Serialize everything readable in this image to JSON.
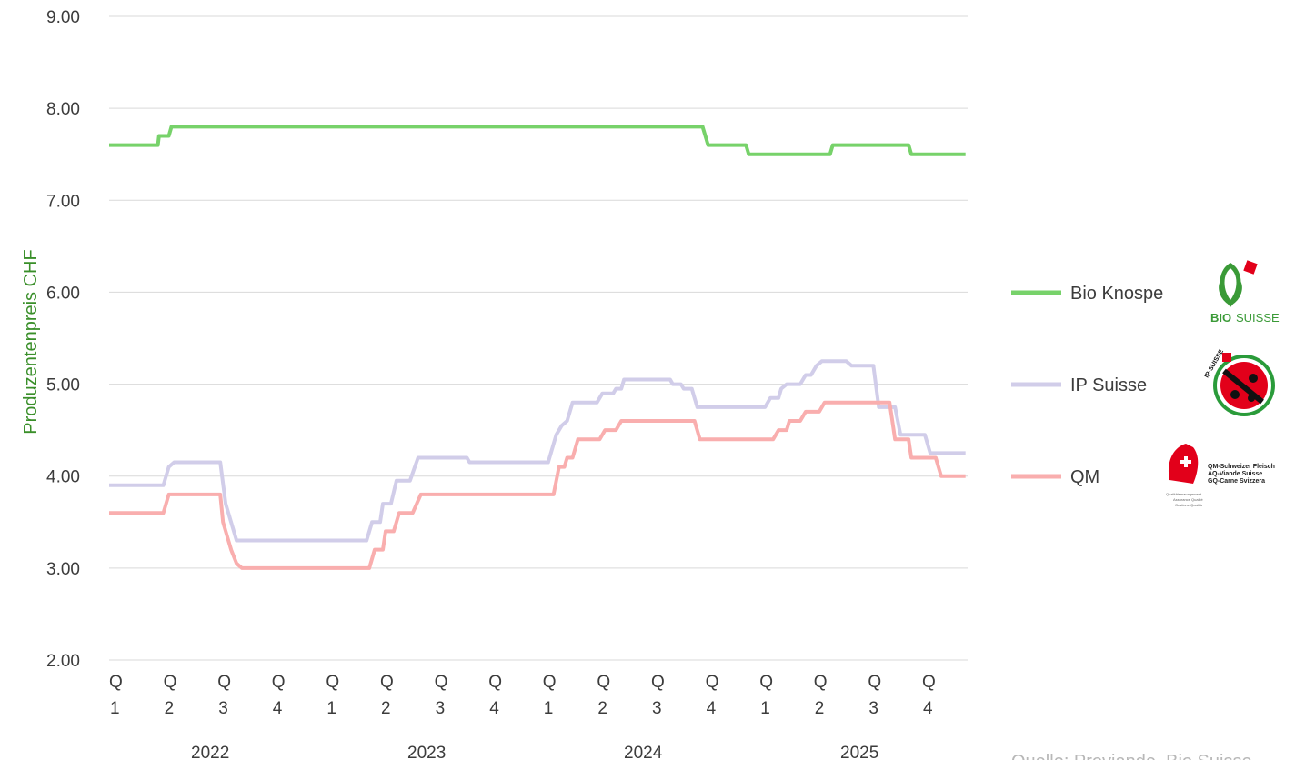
{
  "chart_data": {
    "type": "line",
    "title": "",
    "ylabel": "Produzentenpreis CHF",
    "ylim": [
      2.0,
      9.0
    ],
    "y_ticks": [
      "9.00",
      "8.00",
      "7.00",
      "6.00",
      "5.00",
      "4.00",
      "3.00",
      "2.00"
    ],
    "y_tick_values": [
      9,
      8,
      7,
      6,
      5,
      4,
      3,
      2
    ],
    "grid": true,
    "legend_position": "right",
    "x_quarter_labels": [
      {
        "q": "Q",
        "n": "1"
      },
      {
        "q": "Q",
        "n": "2"
      },
      {
        "q": "Q",
        "n": "3"
      },
      {
        "q": "Q",
        "n": "4"
      },
      {
        "q": "Q",
        "n": "1"
      },
      {
        "q": "Q",
        "n": "2"
      },
      {
        "q": "Q",
        "n": "3"
      },
      {
        "q": "Q",
        "n": "4"
      },
      {
        "q": "Q",
        "n": "1"
      },
      {
        "q": "Q",
        "n": "2"
      },
      {
        "q": "Q",
        "n": "3"
      },
      {
        "q": "Q",
        "n": "4"
      },
      {
        "q": "Q",
        "n": "1"
      },
      {
        "q": "Q",
        "n": "2"
      },
      {
        "q": "Q",
        "n": "3"
      },
      {
        "q": "Q",
        "n": "4"
      }
    ],
    "x_years": [
      "2022",
      "2023",
      "2024",
      "2025"
    ],
    "series": [
      {
        "name": "Bio Knospe",
        "color": "#77d26a",
        "points": [
          [
            0,
            7.6
          ],
          [
            0.9,
            7.6
          ],
          [
            0.92,
            7.7
          ],
          [
            1.1,
            7.7
          ],
          [
            1.15,
            7.8
          ],
          [
            10.95,
            7.8
          ],
          [
            11.05,
            7.6
          ],
          [
            11.75,
            7.6
          ],
          [
            11.8,
            7.5
          ],
          [
            13.3,
            7.5
          ],
          [
            13.35,
            7.6
          ],
          [
            14.75,
            7.6
          ],
          [
            14.8,
            7.5
          ],
          [
            15.8,
            7.5
          ]
        ]
      },
      {
        "name": "IP Suisse",
        "color": "#d1cde9",
        "points": [
          [
            0,
            3.9
          ],
          [
            1.0,
            3.9
          ],
          [
            1.1,
            4.1
          ],
          [
            1.2,
            4.15
          ],
          [
            2.05,
            4.15
          ],
          [
            2.15,
            3.7
          ],
          [
            2.3,
            3.4
          ],
          [
            2.35,
            3.3
          ],
          [
            4.75,
            3.3
          ],
          [
            4.85,
            3.5
          ],
          [
            5.0,
            3.5
          ],
          [
            5.05,
            3.7
          ],
          [
            5.2,
            3.7
          ],
          [
            5.3,
            3.95
          ],
          [
            5.55,
            3.95
          ],
          [
            5.7,
            4.2
          ],
          [
            6.6,
            4.2
          ],
          [
            6.65,
            4.15
          ],
          [
            8.1,
            4.15
          ],
          [
            8.25,
            4.45
          ],
          [
            8.35,
            4.55
          ],
          [
            8.45,
            4.6
          ],
          [
            8.55,
            4.8
          ],
          [
            9.0,
            4.8
          ],
          [
            9.1,
            4.9
          ],
          [
            9.3,
            4.9
          ],
          [
            9.35,
            4.95
          ],
          [
            9.45,
            4.95
          ],
          [
            9.5,
            5.05
          ],
          [
            10.35,
            5.05
          ],
          [
            10.4,
            5.0
          ],
          [
            10.55,
            5.0
          ],
          [
            10.6,
            4.95
          ],
          [
            10.75,
            4.95
          ],
          [
            10.85,
            4.75
          ],
          [
            12.1,
            4.75
          ],
          [
            12.2,
            4.85
          ],
          [
            12.35,
            4.85
          ],
          [
            12.4,
            4.95
          ],
          [
            12.5,
            5.0
          ],
          [
            12.75,
            5.0
          ],
          [
            12.85,
            5.1
          ],
          [
            12.95,
            5.1
          ],
          [
            13.05,
            5.2
          ],
          [
            13.15,
            5.25
          ],
          [
            13.6,
            5.25
          ],
          [
            13.7,
            5.2
          ],
          [
            14.1,
            5.2
          ],
          [
            14.2,
            4.75
          ],
          [
            14.5,
            4.75
          ],
          [
            14.6,
            4.45
          ],
          [
            15.05,
            4.45
          ],
          [
            15.15,
            4.25
          ],
          [
            15.8,
            4.25
          ]
        ]
      },
      {
        "name": "QM",
        "color": "#f9aeae",
        "points": [
          [
            0,
            3.6
          ],
          [
            1.0,
            3.6
          ],
          [
            1.1,
            3.8
          ],
          [
            2.05,
            3.8
          ],
          [
            2.1,
            3.5
          ],
          [
            2.25,
            3.2
          ],
          [
            2.35,
            3.05
          ],
          [
            2.45,
            3.0
          ],
          [
            4.8,
            3.0
          ],
          [
            4.9,
            3.2
          ],
          [
            5.05,
            3.2
          ],
          [
            5.1,
            3.4
          ],
          [
            5.25,
            3.4
          ],
          [
            5.35,
            3.6
          ],
          [
            5.6,
            3.6
          ],
          [
            5.75,
            3.8
          ],
          [
            8.2,
            3.8
          ],
          [
            8.3,
            4.1
          ],
          [
            8.4,
            4.1
          ],
          [
            8.45,
            4.2
          ],
          [
            8.55,
            4.2
          ],
          [
            8.65,
            4.4
          ],
          [
            9.05,
            4.4
          ],
          [
            9.15,
            4.5
          ],
          [
            9.35,
            4.5
          ],
          [
            9.45,
            4.6
          ],
          [
            10.8,
            4.6
          ],
          [
            10.9,
            4.4
          ],
          [
            12.25,
            4.4
          ],
          [
            12.35,
            4.5
          ],
          [
            12.5,
            4.5
          ],
          [
            12.55,
            4.6
          ],
          [
            12.75,
            4.6
          ],
          [
            12.85,
            4.7
          ],
          [
            13.1,
            4.7
          ],
          [
            13.2,
            4.8
          ],
          [
            14.4,
            4.8
          ],
          [
            14.45,
            4.6
          ],
          [
            14.5,
            4.4
          ],
          [
            14.75,
            4.4
          ],
          [
            14.8,
            4.2
          ],
          [
            15.25,
            4.2
          ],
          [
            15.35,
            4.0
          ],
          [
            15.8,
            4.0
          ]
        ]
      }
    ]
  },
  "logos": {
    "bio": {
      "text_bold": "BIO",
      "text_light": "SUISSE",
      "color": "#3a9a37",
      "accent": "#e2001a"
    },
    "ip": {
      "text": "IP-SUISSE",
      "colors": [
        "#e2001a",
        "#2a9b3a",
        "#111111"
      ]
    },
    "qm": {
      "line1": "QM-Schweizer Fleisch",
      "line2": "AQ-Viande Suisse",
      "line3": "GQ-Carne Svizzera",
      "sub1": "Qualitätsmanagement",
      "sub2": "Assurance Qualité",
      "sub3": "Gestione Qualità",
      "color": "#e2001a"
    }
  },
  "source": "Quelle: Proviande, Bio Suisse"
}
